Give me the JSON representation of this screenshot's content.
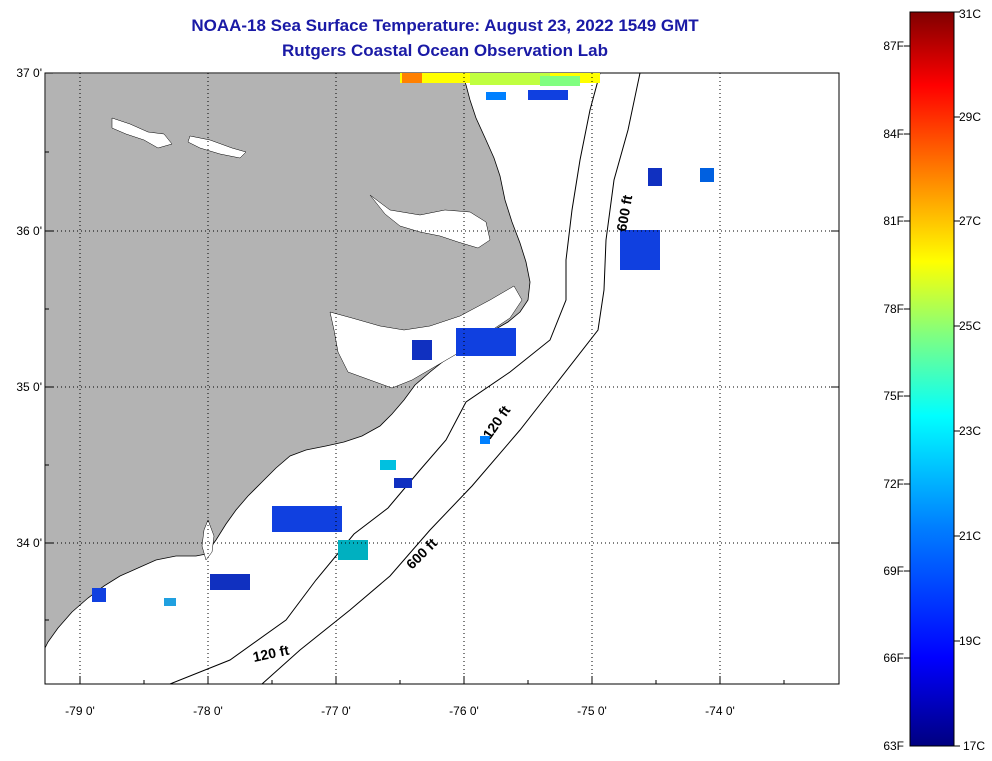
{
  "header": {
    "title": "NOAA-18 Sea Surface Temperature:  August 23, 2022 1549 GMT",
    "subtitle": "Rutgers Coastal Ocean Observation Lab"
  },
  "map": {
    "lat_labels": [
      "37 0'",
      "36 0'",
      "35 0'",
      "34 0'"
    ],
    "lon_labels": [
      "-79 0'",
      "-78 0'",
      "-77 0'",
      "-76 0'",
      "-75 0'",
      "-74 0'"
    ],
    "contour_labels": [
      "600 ft",
      "120 ft",
      "600 ft",
      "120 ft"
    ],
    "land_color": "#b3b3b3",
    "ocean_color": "#ffffff"
  },
  "colorbar": {
    "fahrenheit_labels": [
      "87F",
      "84F",
      "81F",
      "78F",
      "75F",
      "72F",
      "69F",
      "66F",
      "63F"
    ],
    "celsius_labels": [
      "31C",
      "29C",
      "27C",
      "25C",
      "23C",
      "21C",
      "19C",
      "17C"
    ],
    "colors": [
      "#800000",
      "#ff0000",
      "#ff8000",
      "#ffff00",
      "#80ff80",
      "#00ffff",
      "#0080ff",
      "#0000ff",
      "#000080"
    ]
  }
}
